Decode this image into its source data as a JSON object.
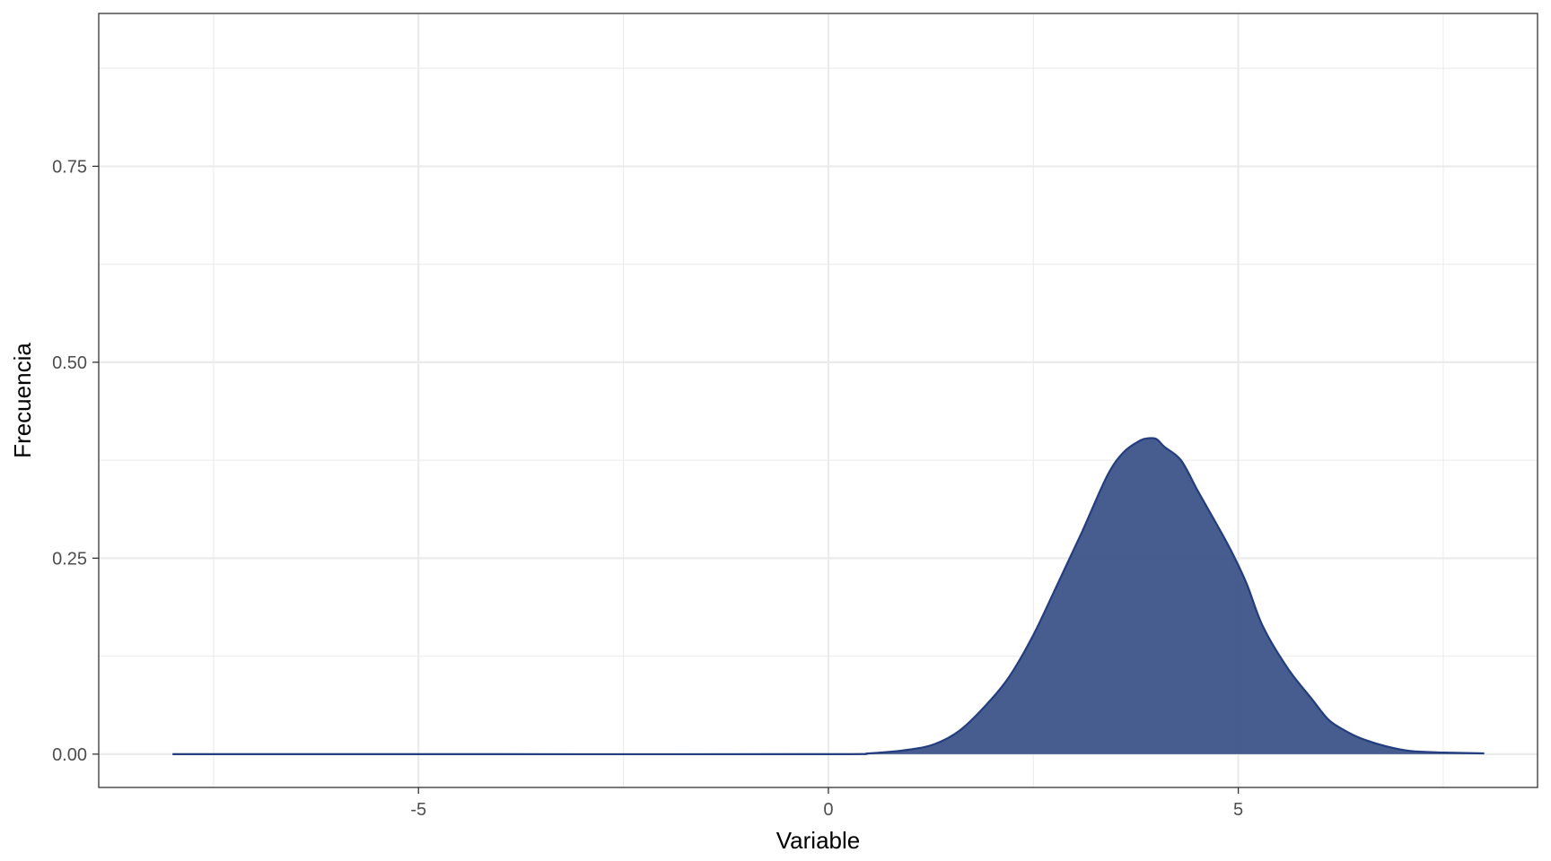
{
  "chart_data": {
    "type": "area",
    "xlabel": "Variable",
    "ylabel": "Frecuencia",
    "xlim": [
      -8.9,
      8.65
    ],
    "ylim": [
      -0.0425,
      0.945
    ],
    "x_ticks": [
      {
        "value": -5,
        "label": "-5"
      },
      {
        "value": 0,
        "label": "0"
      },
      {
        "value": 5,
        "label": "5"
      }
    ],
    "x_minor": [
      -7.5,
      -2.5,
      2.5,
      7.5
    ],
    "y_ticks": [
      {
        "value": 0,
        "label": "0.00"
      },
      {
        "value": 0.25,
        "label": "0.25"
      },
      {
        "value": 0.5,
        "label": "0.50"
      },
      {
        "value": 0.75,
        "label": "0.75"
      }
    ],
    "y_minor": [
      0.125,
      0.375,
      0.625,
      0.875
    ],
    "grid": true,
    "colors": {
      "fill": "#3d5489",
      "line": "#233e7e",
      "grid": "#ebebeb",
      "panel_border": "#333333"
    },
    "x": [
      -8,
      -4,
      0,
      0.5,
      1.0,
      1.3,
      1.6,
      1.9,
      2.2,
      2.5,
      2.8,
      3.1,
      3.4,
      3.6,
      3.8,
      3.9,
      4.0,
      4.1,
      4.3,
      4.5,
      4.7,
      4.9,
      5.1,
      5.3,
      5.6,
      5.9,
      6.1,
      6.3,
      6.5,
      6.8,
      7.1,
      7.5,
      8.0
    ],
    "y": [
      0,
      0,
      0,
      0.001,
      0.006,
      0.013,
      0.03,
      0.06,
      0.098,
      0.152,
      0.218,
      0.285,
      0.355,
      0.385,
      0.4,
      0.403,
      0.402,
      0.392,
      0.375,
      0.337,
      0.3,
      0.262,
      0.218,
      0.163,
      0.11,
      0.07,
      0.044,
      0.03,
      0.02,
      0.01,
      0.004,
      0.002,
      0.001
    ]
  }
}
